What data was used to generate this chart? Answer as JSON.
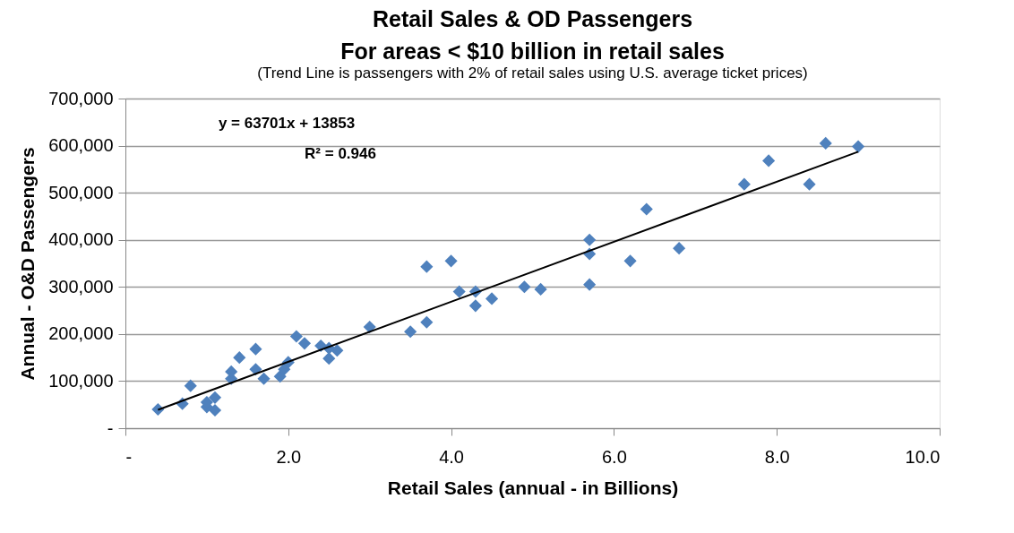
{
  "chart_data": {
    "type": "scatter",
    "title": [
      "Retail Sales & OD Passengers",
      "For areas < $10 billion in retail sales"
    ],
    "subtitle": "(Trend Line is passengers with 2% of retail sales using U.S. average ticket prices)",
    "xlabel": "Retail Sales (annual - in Billions)",
    "ylabel": "Annual - O&D Passengers",
    "annotations": [
      "y = 63701x + 13853",
      "R² = 0.946"
    ],
    "marker": "diamond",
    "grid": "y",
    "xlim": [
      0,
      10
    ],
    "xticks": [
      {
        "value": 0,
        "label": "-"
      },
      {
        "value": 2,
        "label": "2.0"
      },
      {
        "value": 4,
        "label": "4.0"
      },
      {
        "value": 6,
        "label": "6.0"
      },
      {
        "value": 8,
        "label": "8.0"
      },
      {
        "value": 10,
        "label": "10.0"
      }
    ],
    "ylim": [
      0,
      700000
    ],
    "yticks": [
      {
        "value": 0,
        "label": "-"
      },
      {
        "value": 100000,
        "label": "100,000"
      },
      {
        "value": 200000,
        "label": "200,000"
      },
      {
        "value": 300000,
        "label": "300,000"
      },
      {
        "value": 400000,
        "label": "400,000"
      },
      {
        "value": 500000,
        "label": "500,000"
      },
      {
        "value": 600000,
        "label": "600,000"
      },
      {
        "value": 700000,
        "label": "700,000"
      }
    ],
    "series": [
      {
        "color": "#4f81bd",
        "x": [
          0.4,
          0.7,
          0.8,
          1.0,
          1.0,
          1.1,
          1.1,
          1.3,
          1.3,
          1.4,
          1.6,
          1.6,
          1.7,
          1.9,
          1.95,
          2.0,
          2.1,
          2.2,
          2.4,
          2.5,
          2.5,
          2.6,
          3.0,
          3.5,
          3.7,
          3.7,
          4.0,
          4.1,
          4.3,
          4.3,
          4.5,
          4.9,
          5.1,
          5.7,
          5.7,
          5.7,
          6.2,
          6.4,
          6.8,
          7.6,
          7.9,
          8.4,
          8.6,
          9.0
        ],
        "values": [
          40000,
          52000,
          90000,
          45000,
          55000,
          38000,
          65000,
          105000,
          120000,
          150000,
          168000,
          125000,
          105000,
          110000,
          125000,
          140000,
          195000,
          180000,
          175000,
          148000,
          170000,
          165000,
          215000,
          205000,
          343000,
          225000,
          355000,
          290000,
          290000,
          260000,
          275000,
          300000,
          295000,
          400000,
          370000,
          305000,
          355000,
          465000,
          382000,
          518000,
          568000,
          518000,
          605000,
          598000
        ]
      },
      {
        "type": "line",
        "color": "#000000",
        "marker": "none",
        "x": [
          0.4,
          9.0
        ],
        "values": [
          39000,
          587000
        ]
      }
    ]
  }
}
